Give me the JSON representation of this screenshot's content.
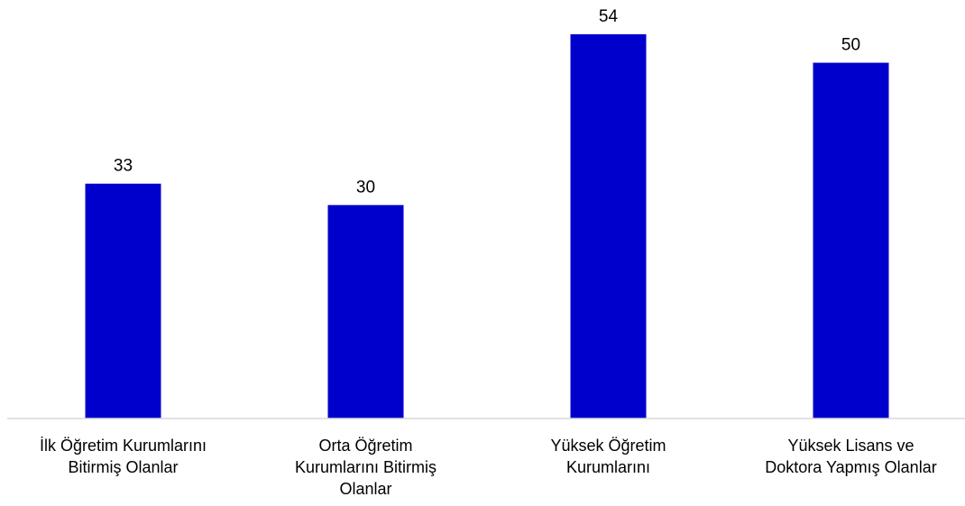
{
  "chart_data": {
    "type": "bar",
    "categories": [
      "İlk Öğretim Kurumlarını\nBitirmiş Olanlar",
      "Orta Öğretim\nKurumlarını Bitirmiş\nOlanlar",
      "Yüksek Öğretim\nKurumlarını",
      "Yüksek Lisans ve\nDoktora Yapmış Olanlar"
    ],
    "values": [
      33,
      30,
      54,
      50
    ],
    "color": "#0000cc",
    "ylim": [
      0,
      54
    ]
  }
}
